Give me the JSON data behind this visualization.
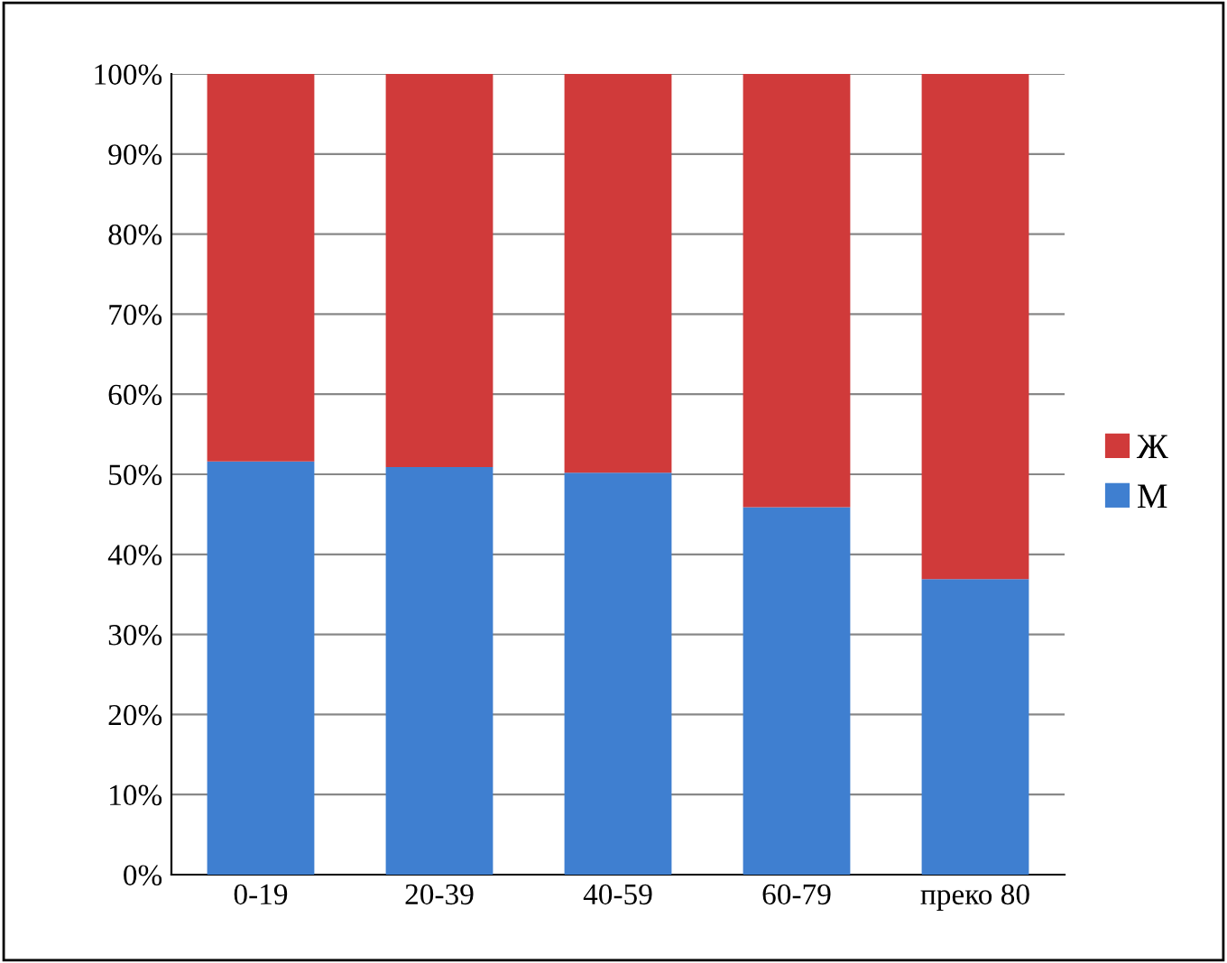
{
  "chart_data": {
    "type": "bar",
    "stacked": true,
    "categories": [
      "0-19",
      "20-39",
      "40-59",
      "60-79",
      "преко 80"
    ],
    "series": [
      {
        "name": "М",
        "color": "#3f7fd0",
        "values": [
          51.6,
          50.9,
          50.2,
          45.9,
          36.9
        ]
      },
      {
        "name": "Ж",
        "color": "#d03a3a",
        "values": [
          48.4,
          49.1,
          49.8,
          54.1,
          63.1
        ]
      }
    ],
    "ylim": [
      0,
      100
    ],
    "yticks": [
      {
        "value": 0,
        "label": "0%"
      },
      {
        "value": 10,
        "label": "10%"
      },
      {
        "value": 20,
        "label": "20%"
      },
      {
        "value": 30,
        "label": "30%"
      },
      {
        "value": 40,
        "label": "40%"
      },
      {
        "value": 50,
        "label": "50%"
      },
      {
        "value": 60,
        "label": "60%"
      },
      {
        "value": 70,
        "label": "70%"
      },
      {
        "value": 80,
        "label": "80%"
      },
      {
        "value": 90,
        "label": "90%"
      },
      {
        "value": 100,
        "label": "100%"
      }
    ],
    "grid": "y",
    "legend": "right"
  }
}
